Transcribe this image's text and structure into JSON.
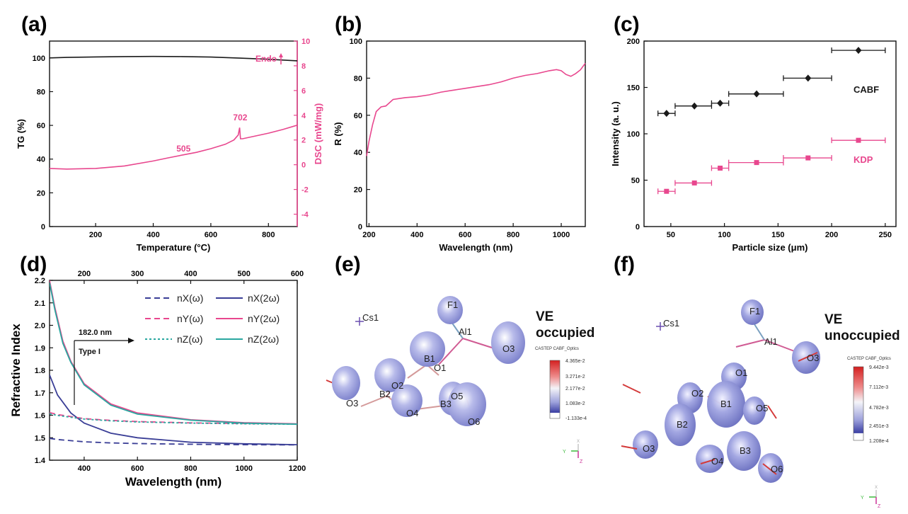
{
  "panels": {
    "a": "(a)",
    "b": "(b)",
    "c": "(c)",
    "d": "(d)",
    "e": "(e)",
    "f": "(f)"
  },
  "colors": {
    "black": "#1a1a1a",
    "pink": "#e8478e",
    "navy": "#3a3e96",
    "purple": "#7a6faa",
    "teal": "#2aa7a0",
    "iso_fill": "#8f93d6"
  },
  "chart_data": [
    {
      "id": "a",
      "type": "line",
      "xlabel": "Temperature (°C)",
      "ylabel": "TG (%)",
      "y2label": "DSC (mW/mg)",
      "xlim": [
        40,
        900
      ],
      "ylim": [
        0,
        110
      ],
      "y2lim": [
        -5,
        10
      ],
      "xticks": [
        200,
        400,
        600,
        800
      ],
      "yticks": [
        0,
        20,
        40,
        60,
        80,
        100
      ],
      "y2ticks": [
        -4,
        -2,
        0,
        2,
        4,
        6,
        8,
        10
      ],
      "series": [
        {
          "axis": "y",
          "color": "#1a1a1a",
          "x": [
            40,
            100,
            200,
            300,
            400,
            500,
            600,
            700,
            800,
            900
          ],
          "values": [
            100.0,
            100.3,
            100.6,
            100.8,
            100.9,
            100.8,
            100.5,
            99.9,
            99.2,
            98.3
          ]
        },
        {
          "axis": "y2",
          "color": "#e8478e",
          "x": [
            40,
            100,
            200,
            300,
            400,
            450,
            505,
            550,
            600,
            650,
            680,
            695,
            700,
            703,
            710,
            750,
            800,
            850,
            900
          ],
          "values": [
            -0.3,
            -0.35,
            -0.3,
            -0.1,
            0.3,
            0.55,
            0.8,
            1.0,
            1.3,
            1.65,
            2.0,
            2.4,
            3.0,
            2.1,
            2.1,
            2.3,
            2.55,
            2.85,
            3.2
          ]
        }
      ],
      "annotations": [
        {
          "text": "505",
          "x": 505,
          "y2": 0.85
        },
        {
          "text": "702",
          "x": 702,
          "y2": 3.35
        },
        {
          "text": "Endo",
          "x": 840,
          "y2": 4.3
        }
      ]
    },
    {
      "id": "b",
      "type": "line",
      "xlabel": "Wavelength (nm)",
      "ylabel": "R (%)",
      "xlim": [
        190,
        1100
      ],
      "ylim": [
        0,
        100
      ],
      "xticks": [
        200,
        400,
        600,
        800,
        1000
      ],
      "yticks": [
        0,
        20,
        40,
        60,
        80,
        100
      ],
      "series": [
        {
          "color": "#e8478e",
          "x": [
            190,
            200,
            215,
            230,
            250,
            270,
            300,
            350,
            400,
            450,
            500,
            550,
            600,
            650,
            700,
            750,
            800,
            850,
            900,
            950,
            980,
            1000,
            1020,
            1040,
            1060,
            1080,
            1100
          ],
          "values": [
            38,
            46,
            55,
            62,
            64.5,
            65,
            68.5,
            69.5,
            70,
            71,
            72.5,
            73.5,
            74.5,
            75.5,
            76.5,
            78,
            80,
            81.5,
            82.5,
            84,
            84.6,
            84,
            82,
            81,
            82.5,
            84.5,
            88
          ]
        }
      ]
    },
    {
      "id": "c",
      "type": "scatter",
      "xlabel": "Particle size (μm)",
      "ylabel": "Intensity (a. u.)",
      "xlim": [
        25,
        260
      ],
      "ylim": [
        0,
        200
      ],
      "xticks": [
        50,
        100,
        150,
        200,
        250
      ],
      "yticks": [
        0,
        50,
        100,
        150,
        200
      ],
      "series": [
        {
          "name": "CABF",
          "color": "#1a1a1a",
          "marker": "diamond",
          "x": [
            46,
            72,
            96,
            130,
            178,
            225
          ],
          "values": [
            122,
            130,
            133,
            143,
            160,
            190
          ],
          "xerr_low": [
            38,
            54,
            88,
            104,
            155,
            200
          ],
          "xerr_high": [
            54,
            88,
            104,
            155,
            200,
            250
          ]
        },
        {
          "name": "KDP",
          "color": "#e8478e",
          "marker": "square",
          "x": [
            46,
            72,
            96,
            130,
            178,
            225
          ],
          "values": [
            38,
            47,
            63,
            69,
            74,
            93
          ],
          "xerr_low": [
            38,
            54,
            88,
            104,
            155,
            200
          ],
          "xerr_high": [
            54,
            88,
            104,
            155,
            200,
            250
          ]
        }
      ]
    },
    {
      "id": "d",
      "type": "line",
      "xlabel": "Wavelength (nm)",
      "ylabel": "Refractive Index",
      "xlim": [
        270,
        1200
      ],
      "ylim": [
        1.4,
        2.2
      ],
      "x2lim": [
        135,
        600
      ],
      "xticks": [
        400,
        600,
        800,
        1000,
        1200
      ],
      "x2ticks": [
        200,
        300,
        400,
        500,
        600
      ],
      "yticks": [
        1.4,
        1.5,
        1.6,
        1.7,
        1.8,
        1.9,
        2.0,
        2.1,
        2.2
      ],
      "annotation": {
        "text": "182.0 nm",
        "subtext": "Type I",
        "x": 364
      },
      "legend_labels": [
        "nX(ω)",
        "nX(2ω)",
        "nY(ω)",
        "nY(2ω)",
        "nZ(ω)",
        "nZ(2ω)"
      ],
      "series": [
        {
          "name": "nX(ω)",
          "color": "#3a3e96",
          "dash": "dashed",
          "axis": "x",
          "x": [
            270,
            300,
            400,
            500,
            600,
            800,
            1000,
            1200
          ],
          "values": [
            1.497,
            1.492,
            1.482,
            1.477,
            1.474,
            1.471,
            1.469,
            1.468
          ]
        },
        {
          "name": "nX(2ω)",
          "color": "#3a3e96",
          "dash": "solid",
          "axis": "x2",
          "x": [
            135,
            150,
            175,
            200,
            250,
            300,
            400,
            500,
            600
          ],
          "values": [
            1.78,
            1.69,
            1.61,
            1.565,
            1.52,
            1.5,
            1.48,
            1.473,
            1.469
          ]
        },
        {
          "name": "nY(ω)",
          "color": "#e8478e",
          "dash": "dashed",
          "axis": "x",
          "x": [
            270,
            300,
            400,
            500,
            600,
            800,
            1000,
            1200
          ],
          "values": [
            1.612,
            1.603,
            1.585,
            1.577,
            1.572,
            1.566,
            1.563,
            1.561
          ]
        },
        {
          "name": "nY(2ω)",
          "color": "#e8478e",
          "dash": "solid",
          "axis": "x2",
          "x": [
            135,
            145,
            160,
            175,
            200,
            250,
            300,
            400,
            500,
            600
          ],
          "values": [
            2.2,
            2.08,
            1.93,
            1.84,
            1.74,
            1.65,
            1.61,
            1.58,
            1.567,
            1.562
          ]
        },
        {
          "name": "nZ(ω)",
          "color": "#2aa7a0",
          "dash": "dotted",
          "axis": "x",
          "x": [
            270,
            300,
            400,
            500,
            600,
            800,
            1000,
            1200
          ],
          "values": [
            1.607,
            1.599,
            1.583,
            1.575,
            1.57,
            1.565,
            1.562,
            1.56
          ]
        },
        {
          "name": "nZ(2ω)",
          "color": "#2aa7a0",
          "dash": "solid",
          "axis": "x2",
          "x": [
            135,
            145,
            160,
            175,
            200,
            250,
            300,
            400,
            500,
            600
          ],
          "values": [
            2.19,
            2.07,
            1.92,
            1.835,
            1.735,
            1.645,
            1.605,
            1.578,
            1.565,
            1.56
          ]
        }
      ]
    }
  ],
  "structure_e": {
    "heading_line1": "VE",
    "heading_line2": "occupied",
    "colorbar_title": "CASTEP CABF_Optics",
    "colorbar_ticks": [
      "4.365e-2",
      "3.271e-2",
      "2.177e-2",
      "1.083e-2",
      "-1.133e-4"
    ],
    "atoms": [
      "Cs1",
      "F1",
      "Al1",
      "O1",
      "O2",
      "O3",
      "O3",
      "O4",
      "O5",
      "O6",
      "B1",
      "B2",
      "B3"
    ]
  },
  "structure_f": {
    "heading_line1": "VE",
    "heading_line2": "unoccupied",
    "colorbar_title": "CASTEP CABF_Optics",
    "colorbar_ticks": [
      "9.442e-3",
      "7.112e-3",
      "4.782e-3",
      "2.451e-3",
      "1.208e-4"
    ],
    "atoms": [
      "Cs1",
      "F1",
      "Al1",
      "O1",
      "O2",
      "O3",
      "O3",
      "O4",
      "O5",
      "O6",
      "B1",
      "B2",
      "B3"
    ]
  },
  "axes_triad": {
    "y": "Y",
    "z": "Z",
    "x": "X"
  }
}
